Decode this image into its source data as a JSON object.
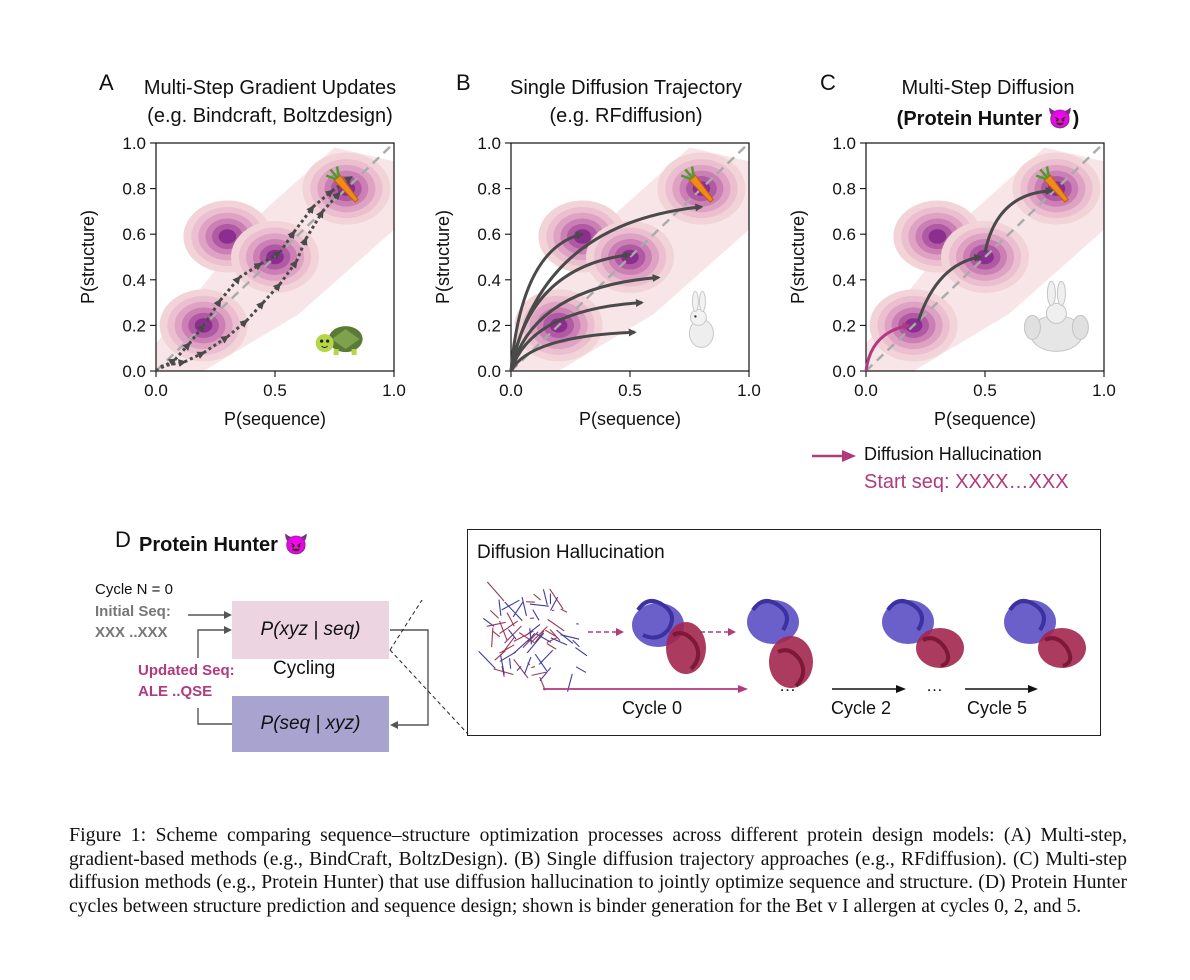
{
  "panels": [
    {
      "letter": "A",
      "title_line1": "Multi-Step Gradient Updates",
      "title_line2": "(e.g. Bindcraft, Boltzdesign)"
    },
    {
      "letter": "B",
      "title_line1": "Single Diffusion Trajectory",
      "title_line2": "(e.g. RFdiffusion)"
    },
    {
      "letter": "C",
      "title_line1": "Multi-Step Diffusion",
      "title_line2": "(Protein Hunter 😈)"
    }
  ],
  "axes": {
    "xlabel": "P(sequence)",
    "ylabel": "P(structure)",
    "xticks": [
      "0.0",
      "0.5",
      "1.0"
    ],
    "yticks": [
      "0.0",
      "0.2",
      "0.4",
      "0.6",
      "0.8",
      "1.0"
    ]
  },
  "chart_data": [
    {
      "type": "contour",
      "panel": "A",
      "xlim": [
        0,
        1
      ],
      "ylim": [
        0,
        1
      ],
      "density_peaks": [
        {
          "x": 0.2,
          "y": 0.2
        },
        {
          "x": 0.3,
          "y": 0.59
        },
        {
          "x": 0.5,
          "y": 0.5
        },
        {
          "x": 0.8,
          "y": 0.8
        }
      ],
      "diagonal": true,
      "mascot": "turtle",
      "target": "carrot"
    },
    {
      "type": "contour",
      "panel": "B",
      "xlim": [
        0,
        1
      ],
      "ylim": [
        0,
        1
      ],
      "density_peaks": [
        {
          "x": 0.2,
          "y": 0.2
        },
        {
          "x": 0.3,
          "y": 0.59
        },
        {
          "x": 0.5,
          "y": 0.5
        },
        {
          "x": 0.8,
          "y": 0.8
        }
      ],
      "diagonal": true,
      "mascot": "rabbit",
      "target": "carrot"
    },
    {
      "type": "contour",
      "panel": "C",
      "xlim": [
        0,
        1
      ],
      "ylim": [
        0,
        1
      ],
      "density_peaks": [
        {
          "x": 0.2,
          "y": 0.2
        },
        {
          "x": 0.3,
          "y": 0.59
        },
        {
          "x": 0.5,
          "y": 0.5
        },
        {
          "x": 0.8,
          "y": 0.8
        }
      ],
      "diagonal": true,
      "mascot": "muscular-rabbit",
      "target": "carrot"
    }
  ],
  "legend_c": {
    "label": "Diffusion Hallucination",
    "start_seq": "Start seq: XXXX…XXX",
    "color": "#b03a7e"
  },
  "panel_d": {
    "letter": "D",
    "title": "Protein Hunter 😈",
    "cycle_n": "Cycle N = 0",
    "initial_seq_label": "Initial Seq:",
    "initial_seq_value": "XXX ..XXX",
    "updated_seq_label": "Updated Seq:",
    "updated_seq_value": "ALE ..QSE",
    "box_top": "P(xyz | seq)",
    "box_bottom": "P(seq | xyz)",
    "cycling": "Cycling",
    "inset_title": "Diffusion Hallucination",
    "cycle0": "Cycle 0",
    "cycle2": "Cycle 2",
    "cycle5": "Cycle 5",
    "ellipsis": "…"
  },
  "caption": {
    "label": "Figure 1:",
    "text": "Scheme comparing sequence–structure optimization processes across different protein design models: (A) Multi-step, gradient-based methods (e.g., BindCraft, BoltzDesign). (B) Single diffusion trajectory approaches (e.g., RFdiffusion). (C) Multi-step diffusion methods (e.g., Protein Hunter) that use diffusion hallucination to jointly optimize sequence and structure. (D) Protein Hunter cycles between structure prediction and sequence design; shown is binder generation for the Bet v I allergen at cycles 0, 2, and 5."
  },
  "colors": {
    "accent": "#b03a7e",
    "arrow": "#4a4a4a",
    "box_top": "#ecd5e1",
    "box_bottom": "#a9a3d0",
    "blue_domain": "#5b4fc4",
    "red_domain": "#a3264f"
  }
}
